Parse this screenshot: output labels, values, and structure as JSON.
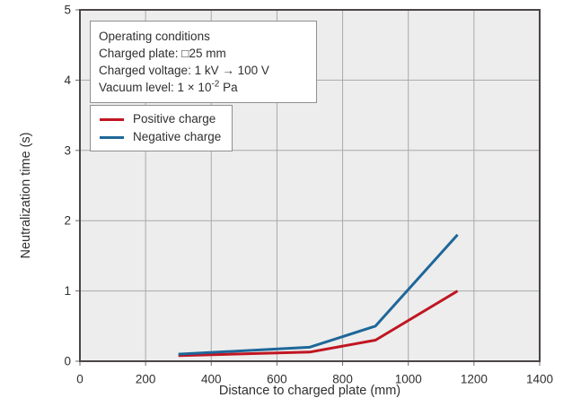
{
  "colors": {
    "figure_bg": "#ffffff",
    "plot_bg": "#ededed",
    "grid": "#a9a9a9",
    "plot_border": "#4b4545",
    "tick": "#6f6a6a",
    "text": "#2f2f2f",
    "positive": "#c01622",
    "negative": "#1e6799"
  },
  "annotation": {
    "lines": [
      "Operating conditions",
      "Charged plate: □25 mm",
      "Charged voltage: 1 kV → 100 V"
    ],
    "vacuum": {
      "prefix": "Vacuum level: 1 × 10",
      "sup": "-2",
      "suffix": " Pa"
    }
  },
  "legend": {
    "items": [
      {
        "label": "Positive charge",
        "color": "#c01622"
      },
      {
        "label": "Negative charge",
        "color": "#1e6799"
      }
    ]
  },
  "chart_data": {
    "type": "line",
    "title": "",
    "xlabel": "Distance to charged plate (mm)",
    "ylabel": "Neutralization time (s)",
    "xlim": [
      0,
      1400
    ],
    "ylim": [
      0,
      5
    ],
    "xticks": [
      0,
      200,
      400,
      600,
      800,
      1000,
      1200,
      1400
    ],
    "yticks": [
      0,
      1,
      2,
      3,
      4,
      5
    ],
    "grid": true,
    "legend_position": "upper-left-inside",
    "x": [
      300,
      700,
      900,
      1150
    ],
    "series": [
      {
        "name": "Positive charge",
        "color": "#c01622",
        "values": [
          0.08,
          0.13,
          0.3,
          1.0
        ]
      },
      {
        "name": "Negative charge",
        "color": "#1e6799",
        "values": [
          0.1,
          0.2,
          0.5,
          1.8
        ]
      }
    ]
  }
}
